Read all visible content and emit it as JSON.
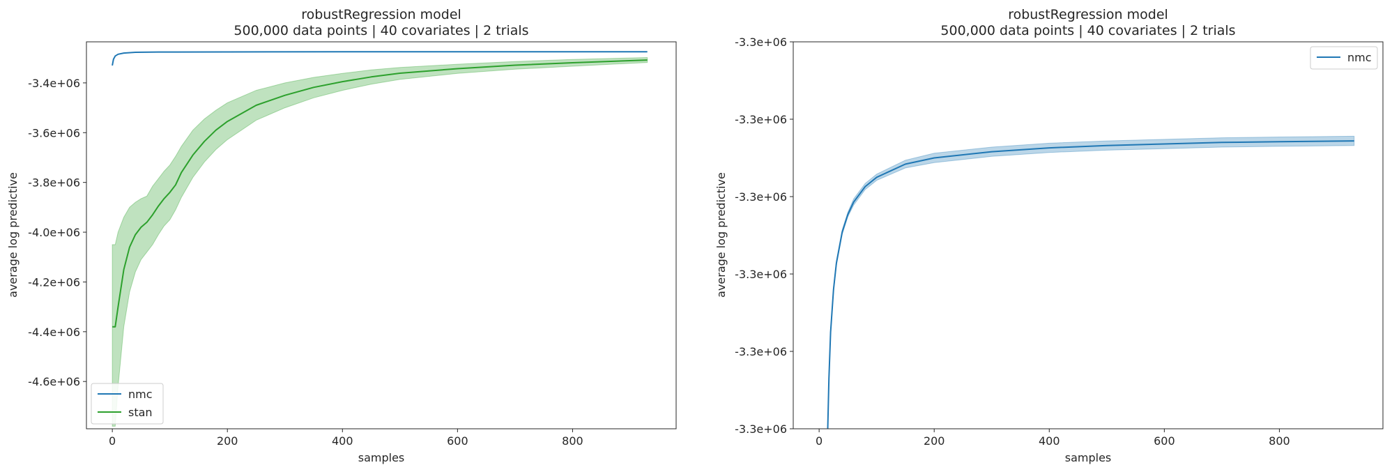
{
  "chart_data": [
    {
      "type": "line",
      "title_line1": "robustRegression model",
      "title_line2": "500,000 data points | 40 covariates | 2 trials",
      "xlabel": "samples",
      "ylabel": "average log predictive",
      "xlim": [
        -45,
        980
      ],
      "ylim": [
        -4790000,
        -3235000
      ],
      "xticks": [
        0,
        200,
        400,
        600,
        800
      ],
      "xtick_labels": [
        "0",
        "200",
        "400",
        "600",
        "800"
      ],
      "yticks": [
        -3400000,
        -3600000,
        -3800000,
        -4000000,
        -4200000,
        -4400000,
        -4600000
      ],
      "ytick_labels": [
        "-3.4e+06",
        "-3.6e+06",
        "-3.8e+06",
        "-4.0e+06",
        "-4.2e+06",
        "-4.4e+06",
        "-4.6e+06"
      ],
      "legend": {
        "position": "lower-left",
        "entries": [
          "nmc",
          "stan"
        ]
      },
      "colors": {
        "nmc": "#1f77b4",
        "stan": "#2ca02c"
      },
      "series": [
        {
          "name": "nmc",
          "x": [
            0,
            2,
            5,
            10,
            20,
            40,
            80,
            200,
            400,
            600,
            800,
            930
          ],
          "y": [
            -3330000,
            -3305000,
            -3292000,
            -3285000,
            -3280000,
            -3277000,
            -3276000,
            -3275500,
            -3275200,
            -3275000,
            -3274900,
            -3274800
          ]
        },
        {
          "name": "stan",
          "x": [
            0,
            5,
            10,
            20,
            30,
            40,
            50,
            60,
            70,
            80,
            90,
            100,
            110,
            120,
            140,
            160,
            180,
            200,
            250,
            300,
            350,
            400,
            450,
            500,
            600,
            700,
            800,
            930
          ],
          "y": [
            -4380000,
            -4380000,
            -4300000,
            -4150000,
            -4060000,
            -4010000,
            -3980000,
            -3960000,
            -3930000,
            -3895000,
            -3865000,
            -3840000,
            -3810000,
            -3760000,
            -3690000,
            -3635000,
            -3590000,
            -3555000,
            -3490000,
            -3450000,
            -3418000,
            -3395000,
            -3376000,
            -3361000,
            -3343000,
            -3329000,
            -3319000,
            -3308000
          ],
          "upper": [
            -4050000,
            -4050000,
            -4000000,
            -3940000,
            -3900000,
            -3880000,
            -3865000,
            -3855000,
            -3815000,
            -3785000,
            -3755000,
            -3730000,
            -3695000,
            -3655000,
            -3590000,
            -3545000,
            -3510000,
            -3480000,
            -3430000,
            -3400000,
            -3378000,
            -3362000,
            -3348000,
            -3338000,
            -3325000,
            -3314000,
            -3306000,
            -3298000
          ],
          "lower": [
            -4780000,
            -4780000,
            -4620000,
            -4380000,
            -4240000,
            -4160000,
            -4110000,
            -4080000,
            -4050000,
            -4010000,
            -3975000,
            -3950000,
            -3910000,
            -3860000,
            -3780000,
            -3718000,
            -3668000,
            -3628000,
            -3550000,
            -3500000,
            -3460000,
            -3430000,
            -3405000,
            -3386000,
            -3362000,
            -3345000,
            -3333000,
            -3318000
          ]
        }
      ]
    },
    {
      "type": "line",
      "title_line1": "robustRegression model",
      "title_line2": "500,000 data points | 40 covariates | 2 trials",
      "xlabel": "samples",
      "ylabel": "average log predictive",
      "xlim": [
        -45,
        980
      ],
      "ylim": [
        -3300000,
        -3250000
      ],
      "xticks": [
        0,
        200,
        400,
        600,
        800
      ],
      "xtick_labels": [
        "0",
        "200",
        "400",
        "600",
        "800"
      ],
      "ytick_labels": [
        "-3.3e+06",
        "-3.3e+06",
        "-3.3e+06",
        "-3.3e+06",
        "-3.3e+06",
        "-3.3e+06"
      ],
      "legend": {
        "position": "top-right",
        "entries": [
          "nmc"
        ]
      },
      "colors": {
        "nmc": "#1f77b4"
      },
      "series": [
        {
          "name": "nmc",
          "x": [
            15,
            17,
            20,
            25,
            30,
            40,
            50,
            60,
            80,
            100,
            150,
            200,
            300,
            400,
            500,
            600,
            700,
            800,
            930
          ],
          "y": [
            -3300000,
            -3293500,
            -3287500,
            -3282000,
            -3278600,
            -3274600,
            -3272300,
            -3270700,
            -3268700,
            -3267500,
            -3265800,
            -3265000,
            -3264200,
            -3263700,
            -3263400,
            -3263200,
            -3263000,
            -3262900,
            -3262800
          ],
          "upper": [
            -3300000,
            -3293200,
            -3287200,
            -3281700,
            -3278300,
            -3274300,
            -3272000,
            -3270300,
            -3268300,
            -3267100,
            -3265300,
            -3264400,
            -3263600,
            -3263100,
            -3262800,
            -3262600,
            -3262400,
            -3262300,
            -3262200
          ],
          "lower": [
            -3300000,
            -3293800,
            -3287800,
            -3282300,
            -3278900,
            -3274900,
            -3272600,
            -3271100,
            -3269100,
            -3267900,
            -3266300,
            -3265600,
            -3264800,
            -3264300,
            -3264000,
            -3263800,
            -3263600,
            -3263500,
            -3263400
          ]
        }
      ]
    }
  ]
}
